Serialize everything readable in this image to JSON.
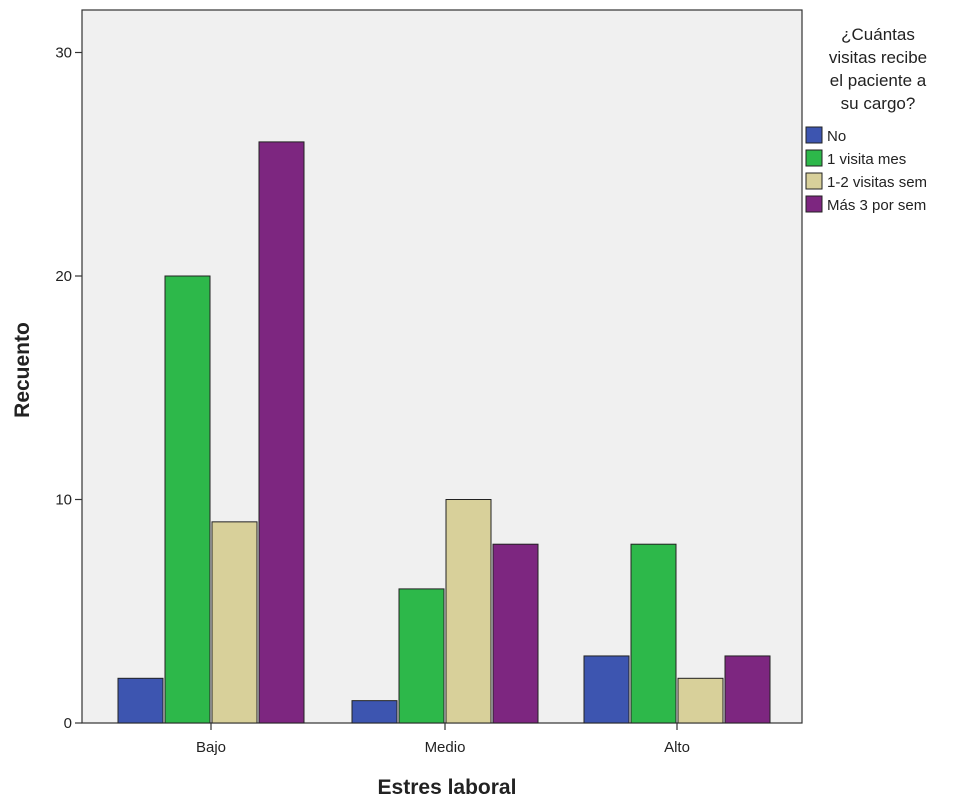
{
  "chart_data": {
    "type": "bar",
    "title": "",
    "xlabel": "Estres laboral",
    "ylabel": "Recuento",
    "categories": [
      "Bajo",
      "Medio",
      "Alto"
    ],
    "ylim": [
      0,
      32
    ],
    "yticks": [
      0,
      10,
      20,
      30
    ],
    "grid": false,
    "legend": {
      "title_lines": [
        "¿Cuántas",
        "visitas recibe",
        "el paciente a",
        "su cargo?"
      ],
      "placement": "right"
    },
    "series": [
      {
        "name": "No",
        "color": "#3d55b0",
        "values": [
          2,
          1,
          3
        ]
      },
      {
        "name": "1 visita  mes",
        "color": "#2db84a",
        "values": [
          20,
          6,
          8
        ]
      },
      {
        "name": "1-2 visitas sem",
        "color": "#d8d09a",
        "values": [
          9,
          10,
          2
        ]
      },
      {
        "name": "Más 3 por sem",
        "color": "#7d2680",
        "values": [
          26,
          8,
          3
        ]
      }
    ]
  },
  "colors": {
    "plot_background": "#f0f0f0",
    "axis": "#333333"
  }
}
